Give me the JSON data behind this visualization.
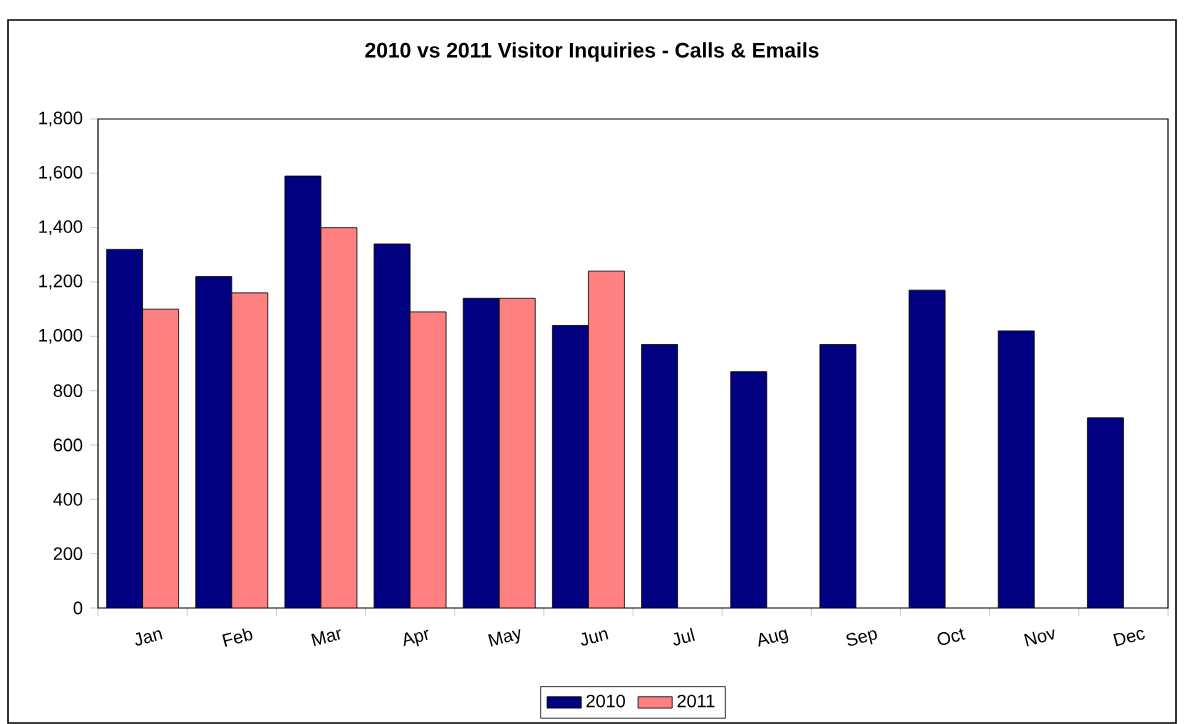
{
  "chart_data": {
    "type": "bar",
    "title": "2010 vs 2011 Visitor Inquiries - Calls & Emails",
    "categories": [
      "Jan",
      "Feb",
      "Mar",
      "Apr",
      "May",
      "Jun",
      "Jul",
      "Aug",
      "Sep",
      "Oct",
      "Nov",
      "Dec"
    ],
    "series": [
      {
        "name": "2010",
        "color": "#000080",
        "values": [
          1320,
          1220,
          1590,
          1340,
          1140,
          1040,
          970,
          870,
          970,
          1170,
          1020,
          700
        ]
      },
      {
        "name": "2011",
        "color": "#ff8080",
        "values": [
          1100,
          1160,
          1400,
          1090,
          1140,
          1240,
          null,
          null,
          null,
          null,
          null,
          null
        ]
      }
    ],
    "ylim": [
      0,
      1800
    ],
    "yticks": [
      {
        "value": 0,
        "label": "0"
      },
      {
        "value": 200,
        "label": "200"
      },
      {
        "value": 400,
        "label": "400"
      },
      {
        "value": 600,
        "label": "600"
      },
      {
        "value": 800,
        "label": "800"
      },
      {
        "value": 1000,
        "label": "1,000"
      },
      {
        "value": 1200,
        "label": "1,200"
      },
      {
        "value": 1400,
        "label": "1,400"
      },
      {
        "value": 1600,
        "label": "1,600"
      },
      {
        "value": 1800,
        "label": "1,800"
      }
    ],
    "legend": "bottom"
  }
}
